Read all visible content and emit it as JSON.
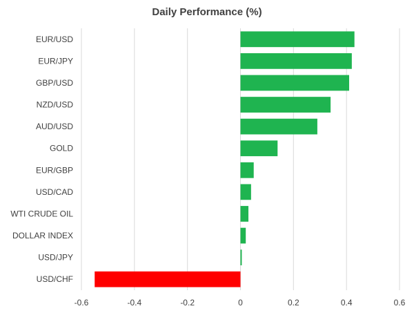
{
  "chart_data": {
    "type": "bar",
    "orientation": "horizontal",
    "title": "Daily Performance (%)",
    "xlabel": "",
    "ylabel": "",
    "categories": [
      "EUR/USD",
      "EUR/JPY",
      "GBP/USD",
      "NZD/USD",
      "AUD/USD",
      "GOLD",
      "EUR/GBP",
      "USD/CAD",
      "WTI CRUDE OIL",
      "DOLLAR INDEX",
      "USD/JPY",
      "USD/CHF"
    ],
    "values": [
      0.43,
      0.42,
      0.41,
      0.34,
      0.29,
      0.14,
      0.05,
      0.04,
      0.03,
      0.02,
      0.005,
      -0.55
    ],
    "xlim": [
      -0.6,
      0.6
    ],
    "xticks": [
      "-0.6",
      "-0.4",
      "-0.2",
      "0",
      "0.2",
      "0.4",
      "0.6"
    ],
    "grid": true,
    "legend": "none",
    "colors": {
      "positive": "#1fb450",
      "negative": "#ff0000",
      "grid": "#d9d9d9",
      "text": "#404040"
    }
  }
}
